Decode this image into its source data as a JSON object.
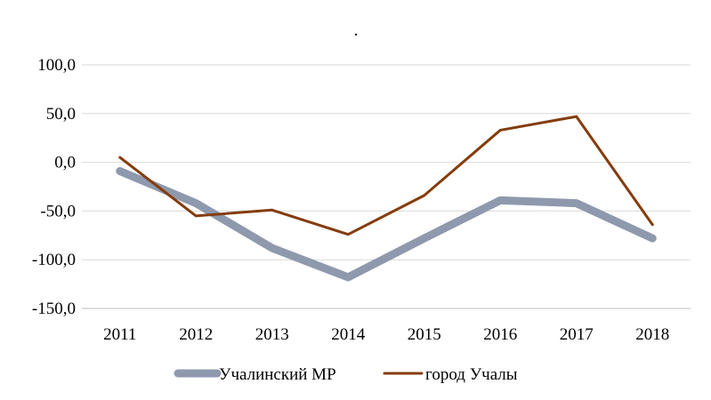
{
  "chart_data": {
    "type": "line",
    "title": ".",
    "categories": [
      "2011",
      "2012",
      "2013",
      "2014",
      "2015",
      "2016",
      "2017",
      "2018"
    ],
    "ylim": [
      -150,
      100
    ],
    "yticks": [
      100,
      50,
      0,
      -50,
      -100,
      -150
    ],
    "ytick_labels": [
      "100,0",
      "50,0",
      "0,0",
      "-50,0",
      "-100,0",
      "-150,0"
    ],
    "grid": true,
    "legend_position": "bottom",
    "series": [
      {
        "name": "Учалинский МР",
        "color": "#8e99ad",
        "values": [
          -9,
          -42,
          -88,
          -118,
          -78,
          -39,
          -42,
          -78
        ]
      },
      {
        "name": "город Учалы",
        "color": "#843c0c",
        "values": [
          5,
          -55,
          -49,
          -74,
          -34,
          33,
          47,
          -64
        ]
      }
    ]
  }
}
